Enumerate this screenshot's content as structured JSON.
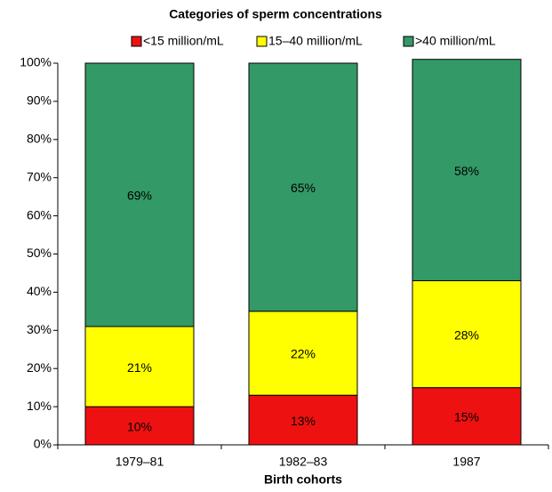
{
  "chart_data": {
    "type": "stacked_bar",
    "title": "Categories of sperm concentrations",
    "x_label": "Birth cohorts",
    "categories": [
      "1979–81",
      "1982–83",
      "1987"
    ],
    "series": [
      {
        "name": "<15 million/mL",
        "color": "#ee1111",
        "values": [
          10,
          13,
          15
        ],
        "value_labels": [
          "10%",
          "13%",
          "15%"
        ]
      },
      {
        "name": "15–40 million/mL",
        "color": "#ffff00",
        "values": [
          21,
          22,
          28
        ],
        "value_labels": [
          "21%",
          "22%",
          "28%"
        ]
      },
      {
        "name": ">40 million/mL",
        "color": "#339966",
        "values": [
          69,
          65,
          58
        ],
        "value_labels": [
          "69%",
          "65%",
          "58%"
        ]
      }
    ],
    "ylim": [
      0,
      100
    ],
    "yticks": [
      {
        "value": 0,
        "label": "0%"
      },
      {
        "value": 10,
        "label": "10%"
      },
      {
        "value": 20,
        "label": "20%"
      },
      {
        "value": 30,
        "label": "30%"
      },
      {
        "value": 40,
        "label": "40%"
      },
      {
        "value": 50,
        "label": "50%"
      },
      {
        "value": 60,
        "label": "60%"
      },
      {
        "value": 70,
        "label": "70%"
      },
      {
        "value": 80,
        "label": "80%"
      },
      {
        "value": 90,
        "label": "90%"
      },
      {
        "value": 100,
        "label": "100%"
      }
    ],
    "legend": "top"
  }
}
